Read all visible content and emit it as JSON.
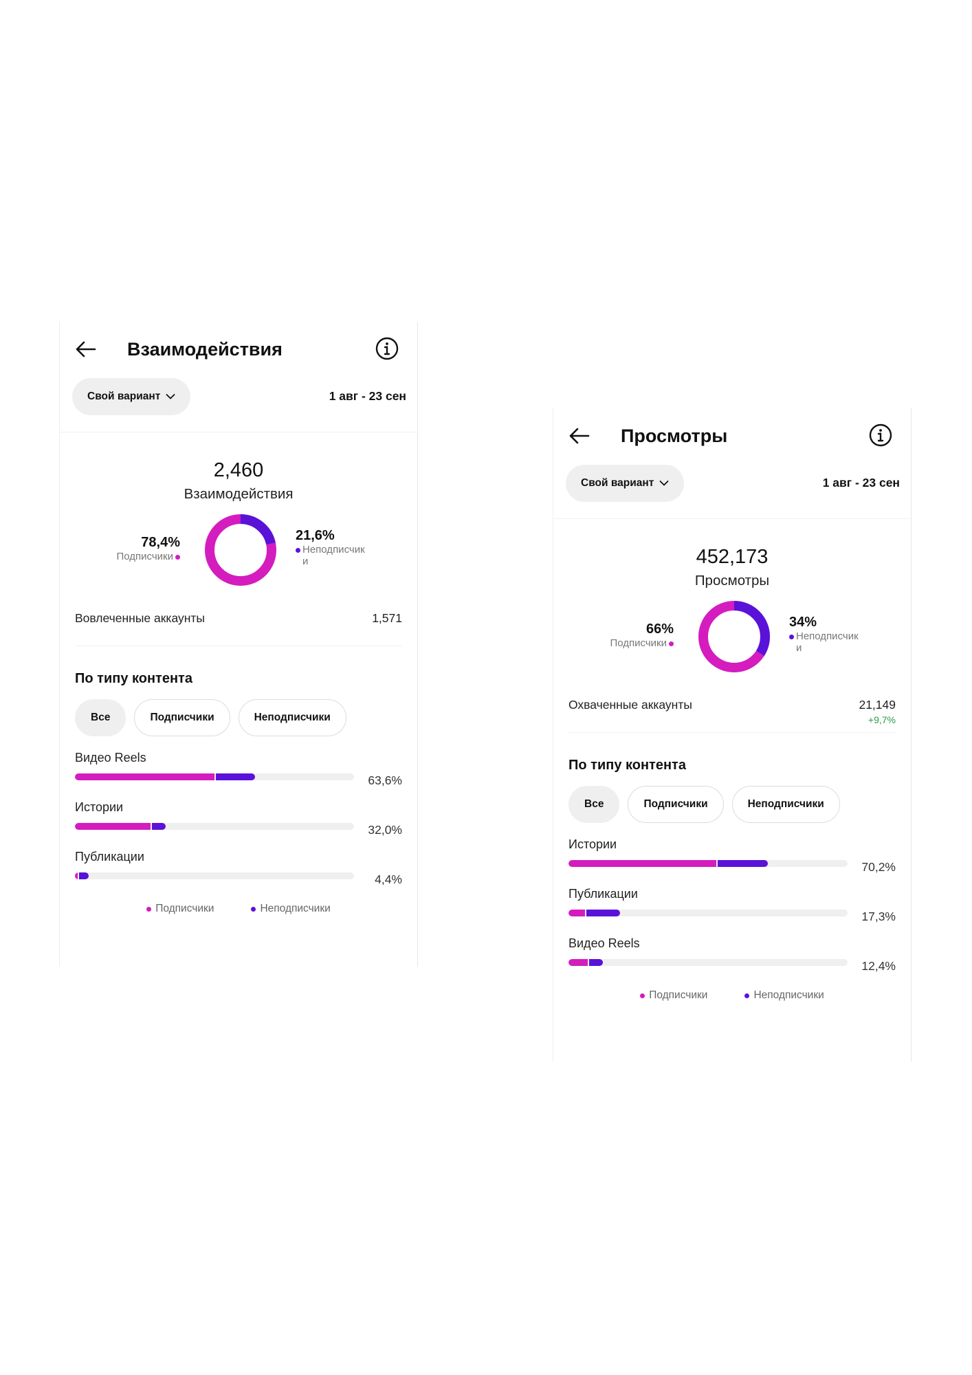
{
  "colors": {
    "subscribers": "#d41cbf",
    "non_subscribers": "#5a12d9",
    "delta_positive": "#2e9a4a"
  },
  "icons": {
    "back": "arrow-left-icon",
    "info": "info-circle-icon",
    "dropdown": "chevron-down-icon"
  },
  "panels": [
    {
      "title": "Взаимодействия",
      "variant_label": "Свой вариант",
      "date_range": "1 авг - 23 сен",
      "total_value": "2,460",
      "total_label": "Взаимодействия",
      "donut": {
        "subscribers_pct_text": "78,4%",
        "subscribers_label": "Подписчики",
        "non_subscribers_pct_text": "21,6%",
        "non_subscribers_label": "Неподписчик\nи",
        "subscribers_fraction": 0.784
      },
      "metric": {
        "label": "Вовлеченные аккаунты",
        "value": "1,571",
        "delta": ""
      },
      "section_title": "По типу контента",
      "tabs": [
        "Все",
        "Подписчики",
        "Неподписчики"
      ],
      "active_tab": 0,
      "content_bars": [
        {
          "label": "Видео Reels",
          "pct_text": "63,6%",
          "subscribers": 0.5,
          "non_subscribers": 0.14
        },
        {
          "label": "Истории",
          "pct_text": "32,0%",
          "subscribers": 0.27,
          "non_subscribers": 0.05
        },
        {
          "label": "Публикации",
          "pct_text": "4,4%",
          "subscribers": 0.01,
          "non_subscribers": 0.035
        }
      ],
      "legend": [
        "Подписчики",
        "Неподписчики"
      ]
    },
    {
      "title": "Просмотры",
      "variant_label": "Свой вариант",
      "date_range": "1 авг - 23 сен",
      "total_value": "452,173",
      "total_label": "Просмотры",
      "donut": {
        "subscribers_pct_text": "66%",
        "subscribers_label": "Подписчики",
        "non_subscribers_pct_text": "34%",
        "non_subscribers_label": "Неподписчик\nи",
        "subscribers_fraction": 0.66
      },
      "metric": {
        "label": "Охваченные аккаунты",
        "value": "21,149",
        "delta": "+9,7%"
      },
      "section_title": "По типу контента",
      "tabs": [
        "Все",
        "Подписчики",
        "Неподписчики"
      ],
      "active_tab": 0,
      "content_bars": [
        {
          "label": "Истории",
          "pct_text": "70,2%",
          "subscribers": 0.53,
          "non_subscribers": 0.18
        },
        {
          "label": "Публикации",
          "pct_text": "17,3%",
          "subscribers": 0.06,
          "non_subscribers": 0.12
        },
        {
          "label": "Видео Reels",
          "pct_text": "12,4%",
          "subscribers": 0.07,
          "non_subscribers": 0.05
        }
      ],
      "legend": [
        "Подписчики",
        "Неподписчики"
      ]
    }
  ]
}
